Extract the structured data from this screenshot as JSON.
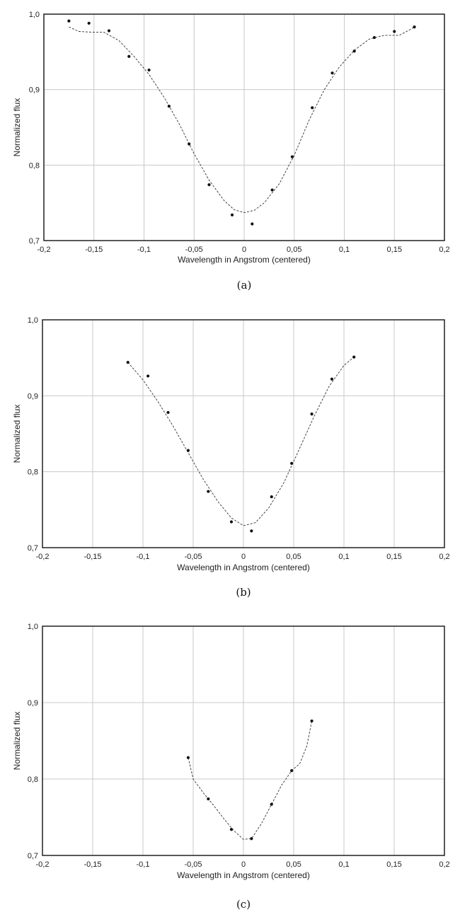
{
  "chart_data": [
    {
      "type": "scatter",
      "caption": "(a)",
      "xlabel": "Wavelength in Angstrom (centered)",
      "ylabel": "Normalized flux",
      "xlim": [
        -0.2,
        0.2
      ],
      "ylim": [
        0.7,
        1.0
      ],
      "x_ticks": [
        "-0,2",
        "-0,15",
        "-0,1",
        "-0,05",
        "0",
        "0,05",
        "0,1",
        "0,15",
        "0,2"
      ],
      "y_ticks": [
        "0,7",
        "0,8",
        "0,9",
        "1,0"
      ],
      "grid": true,
      "points": [
        {
          "x": -0.175,
          "y": 0.991
        },
        {
          "x": -0.155,
          "y": 0.988
        },
        {
          "x": -0.135,
          "y": 0.978
        },
        {
          "x": -0.115,
          "y": 0.944
        },
        {
          "x": -0.095,
          "y": 0.926
        },
        {
          "x": -0.075,
          "y": 0.878
        },
        {
          "x": -0.055,
          "y": 0.828
        },
        {
          "x": -0.035,
          "y": 0.774
        },
        {
          "x": -0.012,
          "y": 0.734
        },
        {
          "x": 0.008,
          "y": 0.722
        },
        {
          "x": 0.028,
          "y": 0.767
        },
        {
          "x": 0.048,
          "y": 0.811
        },
        {
          "x": 0.068,
          "y": 0.876
        },
        {
          "x": 0.088,
          "y": 0.922
        },
        {
          "x": 0.11,
          "y": 0.951
        },
        {
          "x": 0.13,
          "y": 0.969
        },
        {
          "x": 0.15,
          "y": 0.977
        },
        {
          "x": 0.17,
          "y": 0.983
        }
      ],
      "fit_curve": [
        {
          "x": -0.175,
          "y": 0.983
        },
        {
          "x": -0.165,
          "y": 0.977
        },
        {
          "x": -0.15,
          "y": 0.976
        },
        {
          "x": -0.14,
          "y": 0.976
        },
        {
          "x": -0.125,
          "y": 0.965
        },
        {
          "x": -0.11,
          "y": 0.944
        },
        {
          "x": -0.095,
          "y": 0.92
        },
        {
          "x": -0.08,
          "y": 0.89
        },
        {
          "x": -0.065,
          "y": 0.855
        },
        {
          "x": -0.05,
          "y": 0.815
        },
        {
          "x": -0.035,
          "y": 0.78
        },
        {
          "x": -0.02,
          "y": 0.753
        },
        {
          "x": -0.01,
          "y": 0.741
        },
        {
          "x": 0.0,
          "y": 0.737
        },
        {
          "x": 0.01,
          "y": 0.74
        },
        {
          "x": 0.02,
          "y": 0.75
        },
        {
          "x": 0.035,
          "y": 0.775
        },
        {
          "x": 0.05,
          "y": 0.813
        },
        {
          "x": 0.065,
          "y": 0.86
        },
        {
          "x": 0.08,
          "y": 0.9
        },
        {
          "x": 0.095,
          "y": 0.93
        },
        {
          "x": 0.11,
          "y": 0.952
        },
        {
          "x": 0.125,
          "y": 0.967
        },
        {
          "x": 0.14,
          "y": 0.972
        },
        {
          "x": 0.155,
          "y": 0.972
        },
        {
          "x": 0.165,
          "y": 0.979
        },
        {
          "x": 0.17,
          "y": 0.983
        }
      ]
    },
    {
      "type": "scatter",
      "caption": "(b)",
      "xlabel": "Wavelength in Angstrom (centered)",
      "ylabel": "Normalized flux",
      "xlim": [
        -0.2,
        0.2
      ],
      "ylim": [
        0.7,
        1.0
      ],
      "x_ticks": [
        "-0,2",
        "-0,15",
        "-0,1",
        "-0,05",
        "0",
        "0,05",
        "0,1",
        "0,15",
        "0,2"
      ],
      "y_ticks": [
        "0,7",
        "0,8",
        "0,9",
        "1,0"
      ],
      "grid": true,
      "points": [
        {
          "x": -0.115,
          "y": 0.944
        },
        {
          "x": -0.095,
          "y": 0.926
        },
        {
          "x": -0.075,
          "y": 0.878
        },
        {
          "x": -0.055,
          "y": 0.828
        },
        {
          "x": -0.035,
          "y": 0.774
        },
        {
          "x": -0.012,
          "y": 0.734
        },
        {
          "x": 0.008,
          "y": 0.722
        },
        {
          "x": 0.028,
          "y": 0.767
        },
        {
          "x": 0.048,
          "y": 0.811
        },
        {
          "x": 0.068,
          "y": 0.876
        },
        {
          "x": 0.088,
          "y": 0.922
        },
        {
          "x": 0.11,
          "y": 0.951
        }
      ],
      "fit_curve": [
        {
          "x": -0.115,
          "y": 0.944
        },
        {
          "x": -0.1,
          "y": 0.921
        },
        {
          "x": -0.085,
          "y": 0.892
        },
        {
          "x": -0.07,
          "y": 0.86
        },
        {
          "x": -0.055,
          "y": 0.825
        },
        {
          "x": -0.04,
          "y": 0.79
        },
        {
          "x": -0.025,
          "y": 0.76
        },
        {
          "x": -0.012,
          "y": 0.739
        },
        {
          "x": 0.0,
          "y": 0.729
        },
        {
          "x": 0.012,
          "y": 0.733
        },
        {
          "x": 0.025,
          "y": 0.752
        },
        {
          "x": 0.04,
          "y": 0.785
        },
        {
          "x": 0.055,
          "y": 0.828
        },
        {
          "x": 0.07,
          "y": 0.872
        },
        {
          "x": 0.085,
          "y": 0.912
        },
        {
          "x": 0.1,
          "y": 0.94
        },
        {
          "x": 0.11,
          "y": 0.951
        }
      ]
    },
    {
      "type": "scatter",
      "caption": "(c)",
      "xlabel": "Wavelength in Angstrom (centered)",
      "ylabel": "Normalized flux",
      "xlim": [
        -0.2,
        0.2
      ],
      "ylim": [
        0.7,
        1.0
      ],
      "x_ticks": [
        "-0,2",
        "-0,15",
        "-0,1",
        "-0,05",
        "0",
        "0,05",
        "0,1",
        "0,15",
        "0,2"
      ],
      "y_ticks": [
        "0,7",
        "0,8",
        "0,9",
        "1,0"
      ],
      "grid": true,
      "points": [
        {
          "x": -0.055,
          "y": 0.828
        },
        {
          "x": -0.035,
          "y": 0.774
        },
        {
          "x": -0.012,
          "y": 0.734
        },
        {
          "x": 0.008,
          "y": 0.722
        },
        {
          "x": 0.028,
          "y": 0.767
        },
        {
          "x": 0.048,
          "y": 0.811
        },
        {
          "x": 0.068,
          "y": 0.876
        }
      ],
      "fit_curve": [
        {
          "x": -0.055,
          "y": 0.828
        },
        {
          "x": -0.05,
          "y": 0.8
        },
        {
          "x": -0.04,
          "y": 0.782
        },
        {
          "x": -0.03,
          "y": 0.766
        },
        {
          "x": -0.02,
          "y": 0.749
        },
        {
          "x": -0.01,
          "y": 0.733
        },
        {
          "x": 0.0,
          "y": 0.721
        },
        {
          "x": 0.008,
          "y": 0.722
        },
        {
          "x": 0.018,
          "y": 0.742
        },
        {
          "x": 0.028,
          "y": 0.767
        },
        {
          "x": 0.038,
          "y": 0.792
        },
        {
          "x": 0.048,
          "y": 0.811
        },
        {
          "x": 0.056,
          "y": 0.82
        },
        {
          "x": 0.063,
          "y": 0.843
        },
        {
          "x": 0.068,
          "y": 0.876
        }
      ]
    }
  ]
}
